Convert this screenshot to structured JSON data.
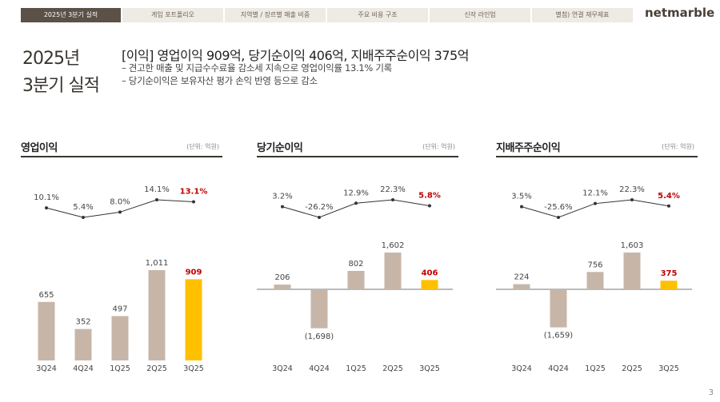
{
  "tabs": [
    {
      "label": "2025년 3분기 실적",
      "active": true
    },
    {
      "label": "게임 포트폴리오",
      "active": false
    },
    {
      "label": "지역별 / 장르별 매출 비중",
      "active": false
    },
    {
      "label": "주요 비용 구조",
      "active": false
    },
    {
      "label": "신작 라인업",
      "active": false
    },
    {
      "label": "별첨) 연결 재무제표",
      "active": false
    }
  ],
  "logo": "netmarble",
  "title_line1": "2025년",
  "title_line2": "3분기 실적",
  "headline": "[이익] 영업이익 909억,  당기순이익 406억, 지배주주순이익 375억",
  "bullets": [
    "– 견고한 매출 및 지급수수료율 감소세 지속으로 영업이익률 13.1% 기록",
    "– 당기순이익은 보유자산 평가 손익 반영 등으로 감소"
  ],
  "page_number": "3",
  "colors": {
    "bar": "#c7b6a8",
    "highlight": "#ffc000",
    "highlight_text": "#c00000",
    "line": "#333333"
  },
  "chart_data": [
    {
      "type": "bar",
      "title": "영업이익",
      "unit": "(단위: 억원)",
      "categories": [
        "3Q24",
        "4Q24",
        "1Q25",
        "2Q25",
        "3Q25"
      ],
      "values": [
        655,
        352,
        497,
        1011,
        909
      ],
      "value_labels": [
        "655",
        "352",
        "497",
        "1,011",
        "909"
      ],
      "margin_line": [
        10.1,
        5.4,
        8.0,
        14.1,
        13.1
      ],
      "margin_labels": [
        "10.1%",
        "5.4%",
        "8.0%",
        "14.1%",
        "13.1%"
      ]
    },
    {
      "type": "bar",
      "title": "당기순이익",
      "unit": "(단위: 억원)",
      "categories": [
        "3Q24",
        "4Q24",
        "1Q25",
        "2Q25",
        "3Q25"
      ],
      "values": [
        206,
        -1698,
        802,
        1602,
        406
      ],
      "value_labels": [
        "206",
        "(1,698)",
        "802",
        "1,602",
        "406"
      ],
      "margin_line": [
        3.2,
        -26.2,
        12.9,
        22.3,
        5.8
      ],
      "margin_labels": [
        "3.2%",
        "-26.2%",
        "12.9%",
        "22.3%",
        "5.8%"
      ]
    },
    {
      "type": "bar",
      "title": "지배주주순이익",
      "unit": "(단위: 억원)",
      "categories": [
        "3Q24",
        "4Q24",
        "1Q25",
        "2Q25",
        "3Q25"
      ],
      "values": [
        224,
        -1659,
        756,
        1603,
        375
      ],
      "value_labels": [
        "224",
        "(1,659)",
        "756",
        "1,603",
        "375"
      ],
      "margin_line": [
        3.5,
        -25.6,
        12.1,
        22.3,
        5.4
      ],
      "margin_labels": [
        "3.5%",
        "-25.6%",
        "12.1%",
        "22.3%",
        "5.4%"
      ]
    }
  ]
}
